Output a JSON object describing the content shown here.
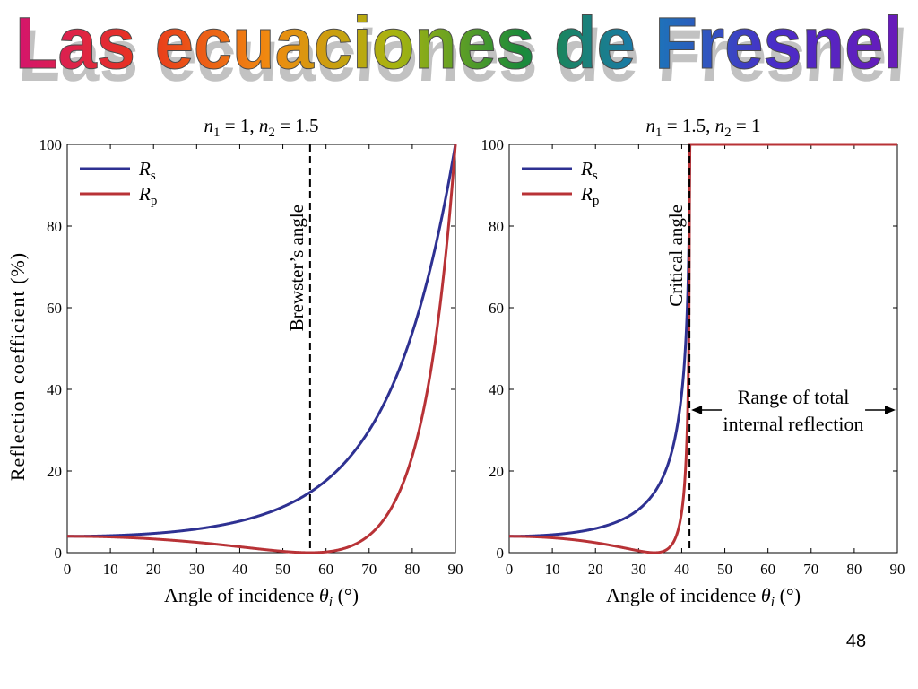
{
  "slide": {
    "title": "Las ecuaciones de Fresnel",
    "page_number": "48",
    "title_gradient": [
      "#d4146e",
      "#e8341c",
      "#f08a10",
      "#a6b410",
      "#1a8a3a",
      "#1a78b8",
      "#4a2cc8",
      "#6a1ab8"
    ]
  },
  "chart_data": [
    {
      "type": "line",
      "title": "n1 = 1,  n2 = 1.5",
      "title_parts": {
        "n1_sym": "n",
        "n1_sub": "1",
        "n1_val": " = 1,  ",
        "n2_sym": "n",
        "n2_sub": "2",
        "n2_val": " = 1.5"
      },
      "xlabel": "Angle of incidence θi (°)",
      "xlabel_parts": {
        "text": "Angle of incidence ",
        "sym": "θ",
        "sub": "i",
        "unit": " (°)"
      },
      "ylabel": "Reflection coefficient (%)",
      "xlim": [
        0,
        90
      ],
      "ylim": [
        0,
        100
      ],
      "xticks": [
        "0",
        "10",
        "20",
        "30",
        "40",
        "50",
        "60",
        "70",
        "80",
        "90"
      ],
      "yticks": [
        "0",
        "20",
        "40",
        "60",
        "80",
        "100"
      ],
      "n1": 1,
      "n2": 1.5,
      "series": [
        {
          "name": "Rs",
          "sym": "R",
          "sub": "s",
          "color": "#2e3192",
          "x": [
            0,
            10,
            20,
            30,
            40,
            50,
            55,
            60,
            65,
            70,
            75,
            80,
            85,
            88,
            90
          ],
          "y": [
            4.0,
            4.2,
            5.0,
            6.4,
            9.1,
            13.9,
            17.5,
            22.2,
            28.5,
            37.1,
            48.9,
            65.4,
            88.2,
            94.4,
            100
          ]
        },
        {
          "name": "Rp",
          "sym": "R",
          "sub": "p",
          "color": "#b83236",
          "x": [
            0,
            10,
            20,
            30,
            40,
            50,
            56.3,
            60,
            65,
            70,
            75,
            80,
            85,
            88,
            90
          ],
          "y": [
            4.0,
            3.8,
            3.3,
            2.5,
            1.4,
            0.2,
            0,
            0.4,
            2.4,
            7.0,
            16.2,
            33.6,
            61.9,
            85.8,
            100
          ]
        }
      ],
      "legend": "top-left",
      "annotation": {
        "text": "Brewster’s angle",
        "x": 56.3
      }
    },
    {
      "type": "line",
      "title": "n1 = 1.5,  n2 = 1",
      "title_parts": {
        "n1_sym": "n",
        "n1_sub": "1",
        "n1_val": " = 1.5,  ",
        "n2_sym": "n",
        "n2_sub": "2",
        "n2_val": " = 1"
      },
      "xlabel": "Angle of incidence θi (°)",
      "xlabel_parts": {
        "text": "Angle of incidence ",
        "sym": "θ",
        "sub": "i",
        "unit": " (°)"
      },
      "xlim": [
        0,
        90
      ],
      "ylim": [
        0,
        100
      ],
      "xticks": [
        "0",
        "10",
        "20",
        "30",
        "40",
        "50",
        "60",
        "70",
        "80",
        "90"
      ],
      "yticks": [
        "0",
        "20",
        "40",
        "60",
        "80",
        "100"
      ],
      "n1": 1.5,
      "n2": 1,
      "series": [
        {
          "name": "Rs",
          "sym": "R",
          "sub": "s",
          "color": "#2e3192",
          "x": [
            0,
            10,
            20,
            25,
            30,
            35,
            38,
            40,
            41,
            41.8,
            50,
            60,
            70,
            80,
            90
          ],
          "y": [
            4.0,
            4.4,
            6.1,
            7.7,
            10.4,
            15.6,
            22.2,
            31.5,
            42.0,
            100,
            100,
            100,
            100,
            100,
            100
          ]
        },
        {
          "name": "Rp",
          "sym": "R",
          "sub": "p",
          "color": "#b83236",
          "x": [
            0,
            10,
            20,
            25,
            30,
            33.7,
            36,
            38,
            40,
            41,
            41.8,
            50,
            60,
            70,
            80,
            90
          ],
          "y": [
            4.0,
            3.5,
            2.2,
            1.3,
            0.4,
            0,
            0.5,
            3.0,
            14.5,
            34.0,
            100,
            100,
            100,
            100,
            100,
            100
          ]
        }
      ],
      "legend": "top-left",
      "annotation": {
        "text": "Critical angle",
        "x": 41.8
      },
      "range_label": [
        "Range of total",
        "internal reflection"
      ]
    }
  ]
}
